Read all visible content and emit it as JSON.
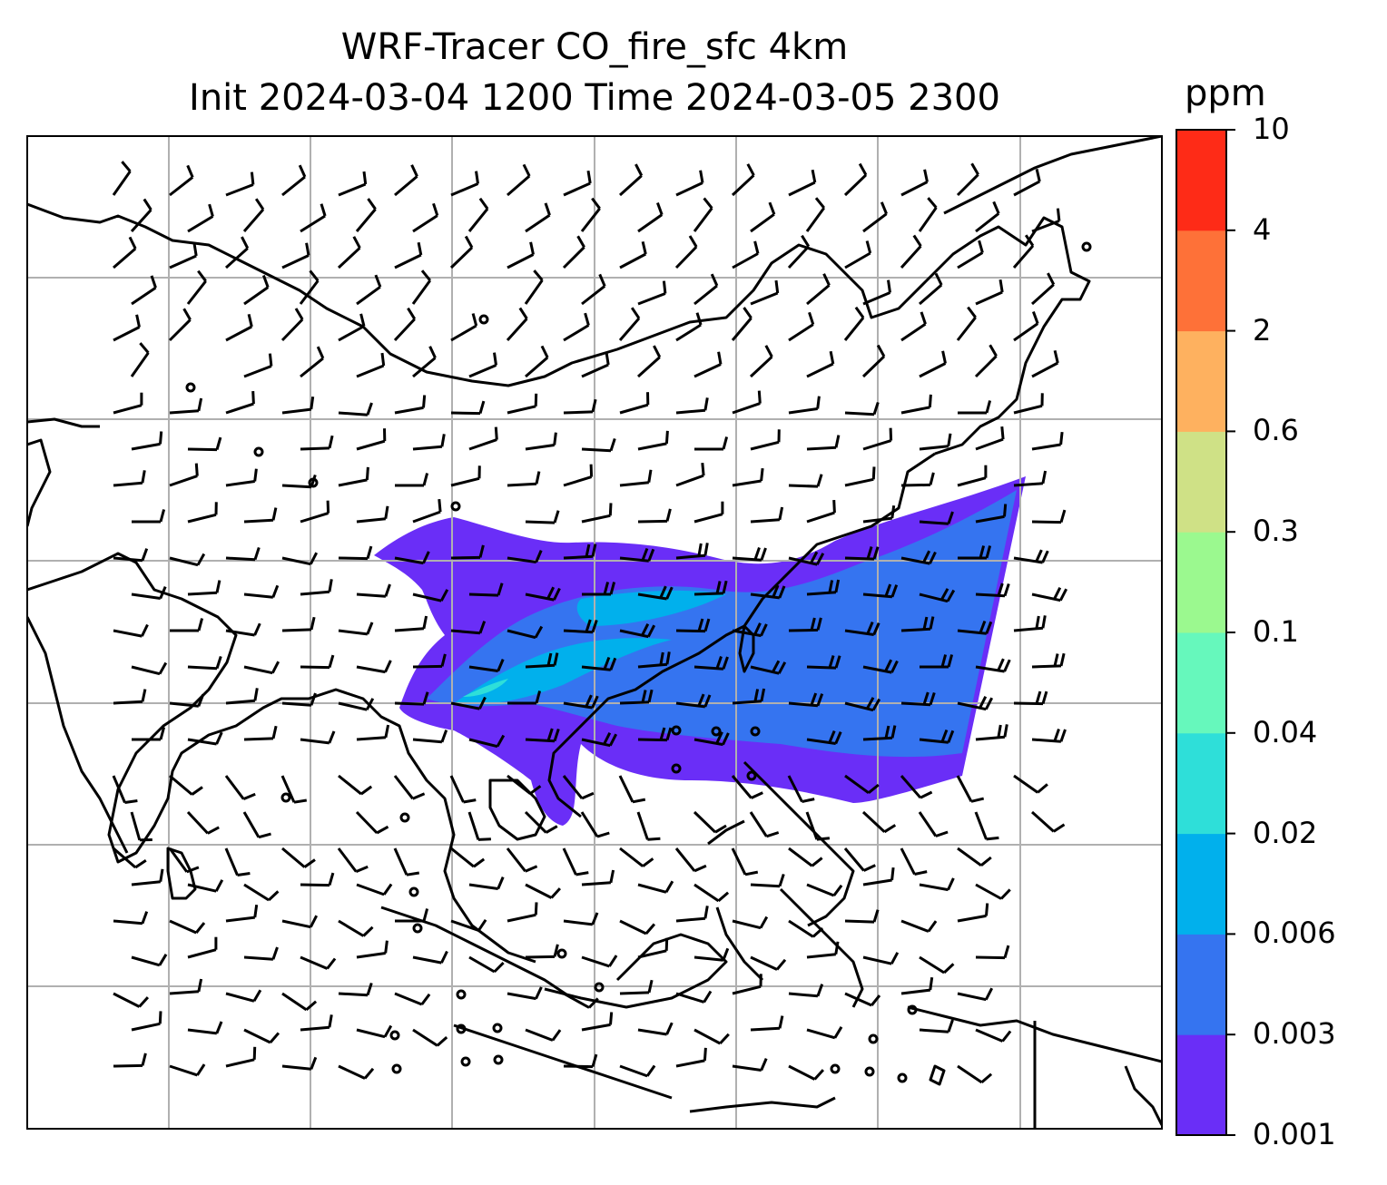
{
  "title": {
    "line1": "WRF-Tracer CO_fire_sfc 4km",
    "line2": "Init 2024-03-04 1200 Time 2024-03-05 2300"
  },
  "colorbar": {
    "unit": "ppm",
    "levels": [
      "0.001",
      "0.003",
      "0.006",
      "0.02",
      "0.04",
      "0.1",
      "0.3",
      "0.6",
      "2",
      "4",
      "10"
    ],
    "colors": [
      "#6a2ef7",
      "#3574f0",
      "#01b0ec",
      "#2edfd9",
      "#66f8bc",
      "#9bf98f",
      "#cfe186",
      "#feb15f",
      "#fe7138",
      "#fe2b17"
    ]
  },
  "map": {
    "variable": "CO_fire_sfc",
    "grid": "on",
    "coastline_color": "#000000",
    "grid_color": "#b0b0b0",
    "calm_marker": "circle",
    "wind_symbol": "barb"
  }
}
